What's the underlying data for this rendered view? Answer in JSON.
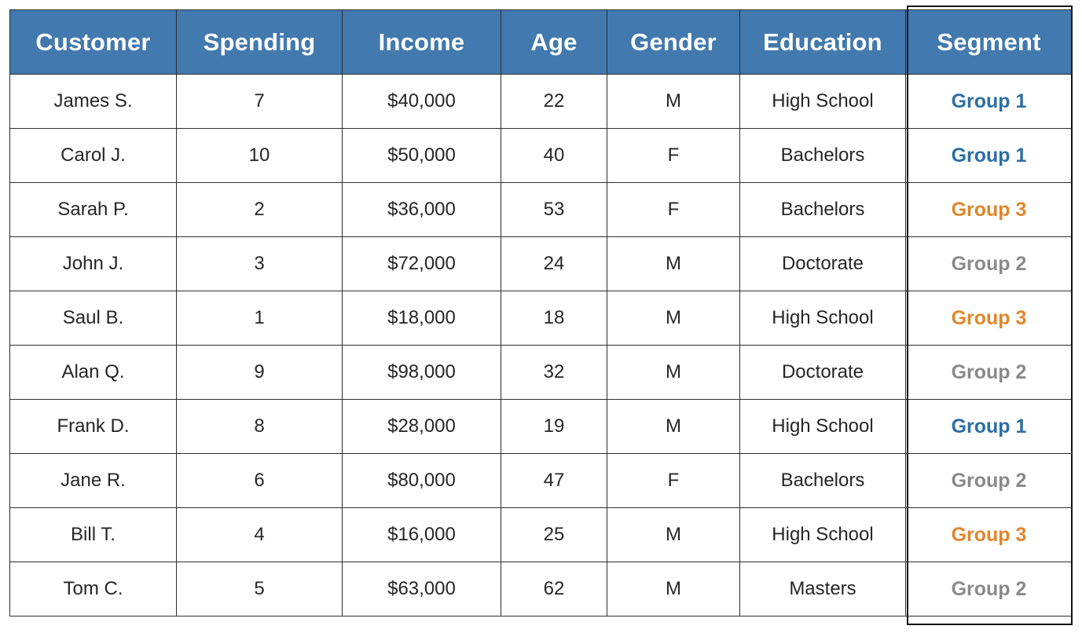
{
  "table": {
    "headers": [
      "Customer",
      "Spending",
      "Income",
      "Age",
      "Gender",
      "Education",
      "Segment"
    ],
    "rows": [
      [
        "James S.",
        "7",
        "$40,000",
        "22",
        "M",
        "High School",
        "Group 1"
      ],
      [
        "Carol J.",
        "10",
        "$50,000",
        "40",
        "F",
        "Bachelors",
        "Group 1"
      ],
      [
        "Sarah P.",
        "2",
        "$36,000",
        "53",
        "F",
        "Bachelors",
        "Group 3"
      ],
      [
        "John J.",
        "3",
        "$72,000",
        "24",
        "M",
        "Doctorate",
        "Group 2"
      ],
      [
        "Saul B.",
        "1",
        "$18,000",
        "18",
        "M",
        "High School",
        "Group 3"
      ],
      [
        "Alan Q.",
        "9",
        "$98,000",
        "32",
        "M",
        "Doctorate",
        "Group 2"
      ],
      [
        "Frank D.",
        "8",
        "$28,000",
        "19",
        "M",
        "High School",
        "Group 1"
      ],
      [
        "Jane R.",
        "6",
        "$80,000",
        "47",
        "F",
        "Bachelors",
        "Group 2"
      ],
      [
        "Bill T.",
        "4",
        "$16,000",
        "25",
        "M",
        "High School",
        "Group 3"
      ],
      [
        "Tom C.",
        "5",
        "$63,000",
        "62",
        "M",
        "Masters",
        "Group 2"
      ]
    ]
  },
  "colors": {
    "header_bg": "#4279ae",
    "header_text": "#ffffff",
    "group_1": "#2c6ea6",
    "group_2": "#8a8a8a",
    "group_3": "#e0862a"
  }
}
